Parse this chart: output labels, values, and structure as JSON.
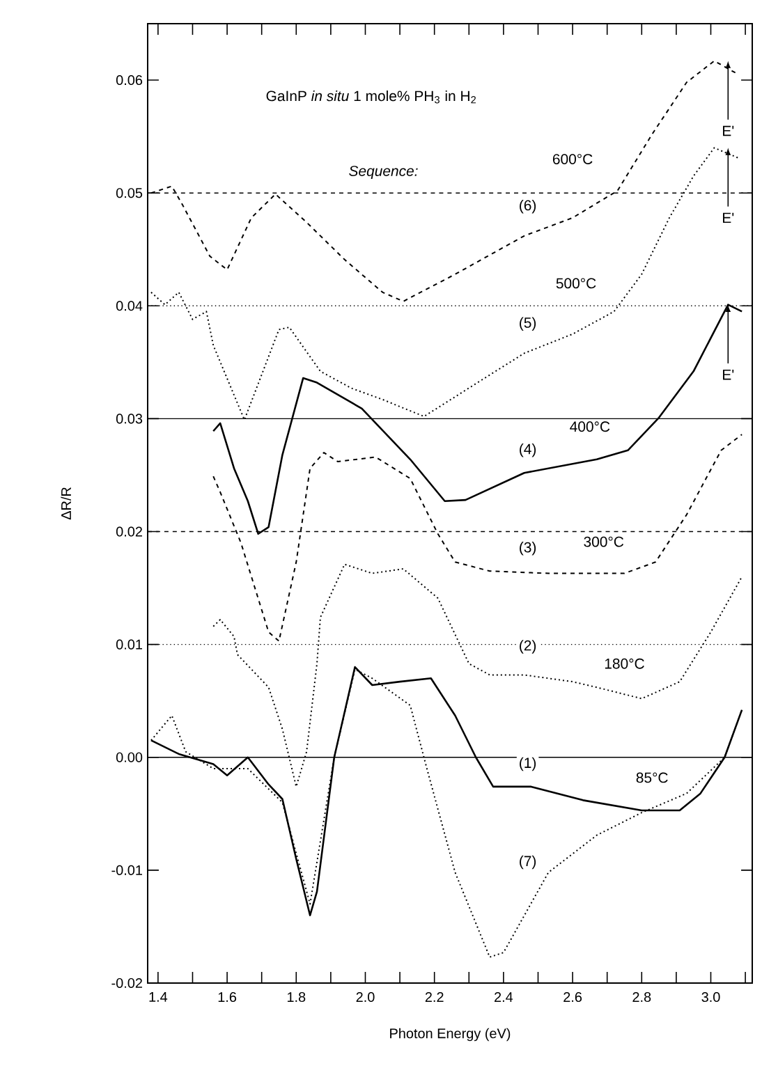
{
  "chart_data": {
    "type": "line",
    "title": "GaInP *in situ* 1 mole% PH$_{3}$ in H$_{2}$",
    "xlabel": "Photon Energy (eV)",
    "ylabel": "ΔR/R",
    "xlim": [
      1.37,
      3.12
    ],
    "ylim": [
      -0.02,
      0.065
    ],
    "xticks": [
      1.4,
      {
        "value": 1.5,
        "label": null
      },
      1.6,
      {
        "value": 1.7,
        "label": null
      },
      1.8,
      {
        "value": 1.9,
        "label": null
      },
      {
        "value": 2,
        "label": "2.0"
      },
      {
        "value": 2.1,
        "label": null
      },
      2.2,
      {
        "value": 2.3,
        "label": null
      },
      2.4,
      {
        "value": 2.5,
        "label": null
      },
      2.6,
      {
        "value": 2.7,
        "label": null
      },
      2.8,
      {
        "value": 2.9,
        "label": null
      },
      {
        "value": 3,
        "label": "3.0"
      },
      {
        "value": 3.1,
        "label": null
      }
    ],
    "yticks": [
      {
        "value": -0.02,
        "label": "-0.02"
      },
      {
        "value": -0.01,
        "label": "-0.01"
      },
      {
        "value": 0,
        "label": "0.00"
      },
      {
        "value": 0.01,
        "label": "0.01"
      },
      {
        "value": 0.02,
        "label": "0.02"
      },
      {
        "value": 0.03,
        "label": "0.03"
      },
      {
        "value": 0.04,
        "label": "0.04"
      },
      {
        "value": 0.05,
        "label": "0.05"
      },
      {
        "value": 0.06,
        "label": "0.06"
      }
    ],
    "series": [
      {
        "color": "#000000",
        "line_style": "solid",
        "x": [
          1.38,
          1.46,
          1.56,
          1.6,
          1.66,
          1.72,
          1.76,
          1.8,
          1.84,
          1.86,
          1.91,
          1.97,
          2.02,
          2.1,
          2.19,
          2.26,
          2.32,
          2.37,
          2.48,
          2.63,
          2.8,
          2.91,
          2.97,
          3.04,
          3.09
        ],
        "values": [
          0.0015,
          0.0003,
          -0.0006,
          -0.0016,
          0.0,
          -0.0024,
          -0.0037,
          -0.009,
          -0.014,
          -0.0119,
          0.0,
          0.008,
          0.0064,
          0.0067,
          0.007,
          0.0037,
          0.0,
          -0.0026,
          -0.0026,
          -0.0038,
          -0.0047,
          -0.0047,
          -0.0032,
          0.0,
          0.0042
        ]
      },
      {
        "color": "#000000",
        "line_style": "dotted",
        "x": [
          1.56,
          1.58,
          1.62,
          1.63,
          1.72,
          1.76,
          1.8,
          1.83,
          1.86,
          1.87,
          1.94,
          2.02,
          2.11,
          2.21,
          2.3,
          2.36,
          2.46,
          2.6,
          2.67,
          2.8,
          2.91,
          3.0,
          3.09
        ],
        "values": [
          0.0116,
          0.0122,
          0.0107,
          0.0091,
          0.0062,
          0.0025,
          -0.0026,
          0.0005,
          0.0083,
          0.0124,
          0.0171,
          0.0163,
          0.0167,
          0.0141,
          0.0083,
          0.0073,
          0.0073,
          0.0067,
          0.0062,
          0.0052,
          0.0067,
          0.0111,
          0.016
        ]
      },
      {
        "color": "#000000",
        "line_style": "dashed",
        "x": [
          1.56,
          1.58,
          1.64,
          1.72,
          1.75,
          1.8,
          1.84,
          1.88,
          1.92,
          2.03,
          2.13,
          2.21,
          2.26,
          2.36,
          2.53,
          2.75,
          2.84,
          2.93,
          3.03,
          3.09
        ],
        "values": [
          0.0249,
          0.0235,
          0.019,
          0.0111,
          0.0103,
          0.0173,
          0.0256,
          0.027,
          0.0262,
          0.0266,
          0.0247,
          0.0198,
          0.0173,
          0.0165,
          0.0163,
          0.0163,
          0.0173,
          0.0215,
          0.0272,
          0.0286
        ]
      },
      {
        "color": "#000000",
        "line_style": "solid",
        "x": [
          1.56,
          1.58,
          1.62,
          1.66,
          1.69,
          1.72,
          1.76,
          1.82,
          1.86,
          1.99,
          2.13,
          2.23,
          2.29,
          2.46,
          2.67,
          2.76,
          2.85,
          2.95,
          3.05,
          3.09
        ],
        "values": [
          0.0289,
          0.0296,
          0.0256,
          0.0227,
          0.0198,
          0.0204,
          0.0268,
          0.0336,
          0.0332,
          0.0309,
          0.0264,
          0.0227,
          0.0228,
          0.0252,
          0.0264,
          0.0272,
          0.0301,
          0.0342,
          0.0401,
          0.0395
        ]
      },
      {
        "color": "#000000",
        "line_style": "dotted",
        "x": [
          1.38,
          1.42,
          1.46,
          1.5,
          1.54,
          1.56,
          1.65,
          1.75,
          1.78,
          1.87,
          1.96,
          2.05,
          2.17,
          2.33,
          2.46,
          2.6,
          2.72,
          2.8,
          2.88,
          2.95,
          3.01,
          3.08
        ],
        "values": [
          0.0412,
          0.0401,
          0.0412,
          0.0388,
          0.0395,
          0.0365,
          0.0299,
          0.0379,
          0.0381,
          0.0342,
          0.0327,
          0.0317,
          0.0302,
          0.0333,
          0.0358,
          0.0375,
          0.0395,
          0.0428,
          0.0478,
          0.0515,
          0.054,
          0.0531
        ]
      },
      {
        "color": "#000000",
        "line_style": "dashed",
        "x": [
          1.38,
          1.44,
          1.47,
          1.55,
          1.6,
          1.67,
          1.74,
          1.83,
          1.94,
          2.05,
          2.11,
          2.26,
          2.46,
          2.6,
          2.73,
          2.83,
          2.93,
          3.01,
          3.08
        ],
        "values": [
          0.05,
          0.0506,
          0.049,
          0.0444,
          0.0432,
          0.0478,
          0.0499,
          0.0474,
          0.0441,
          0.0412,
          0.0404,
          0.0428,
          0.0462,
          0.0478,
          0.0502,
          0.0552,
          0.0598,
          0.0617,
          0.0605
        ]
      },
      {
        "color": "#000000",
        "line_style": "dotted",
        "x": [
          1.38,
          1.44,
          1.48,
          1.56,
          1.66,
          1.76,
          1.84,
          1.91,
          1.97,
          2.02,
          2.13,
          2.18,
          2.26,
          2.36,
          2.4,
          2.53,
          2.67,
          2.8,
          2.93,
          3.04,
          3.09
        ],
        "values": [
          0.0015,
          0.0037,
          0.0005,
          -0.001,
          -0.001,
          -0.004,
          -0.013,
          0.0,
          0.0078,
          0.007,
          0.0046,
          -0.0012,
          -0.0102,
          -0.0177,
          -0.0173,
          -0.0102,
          -0.0069,
          -0.0049,
          -0.0032,
          0.0,
          0.0042
        ]
      }
    ],
    "ref_lines": [
      {
        "axis": "y",
        "value": 0,
        "color": "#000000",
        "line_style": "solid"
      },
      {
        "axis": "y",
        "value": 0.01,
        "color": "#000000",
        "line_style": "dotted"
      },
      {
        "axis": "y",
        "value": 0.02,
        "color": "#000000",
        "line_style": "dashed"
      },
      {
        "axis": "y",
        "value": 0.03,
        "color": "#000000",
        "line_style": "solid"
      },
      {
        "axis": "y",
        "value": 0.04,
        "color": "#000000",
        "line_style": "dotted"
      },
      {
        "axis": "y",
        "value": 0.05,
        "color": "#000000",
        "line_style": "dashed"
      }
    ],
    "annotations": [
      "Sequence:",
      {
        "text": "(1)",
        "x": 2.47,
        "y": -0.0006
      },
      {
        "text": "85°C",
        "x": 2.83,
        "y": -0.0018
      },
      {
        "text": "(7)",
        "x": 2.47,
        "y": -0.0093
      },
      {
        "text": "(2)",
        "x": 2.47,
        "y": 0.0098
      },
      {
        "text": "180°C",
        "x": 2.75,
        "y": 0.0083
      },
      {
        "text": "(3)",
        "x": 2.47,
        "y": 0.0185
      },
      {
        "text": "300°C",
        "x": 2.69,
        "y": 0.0191
      },
      {
        "text": "(4)",
        "x": 2.47,
        "y": 0.0272
      },
      {
        "text": "400°C",
        "x": 2.65,
        "y": 0.0293
      },
      {
        "text": "(5)",
        "x": 2.47,
        "y": 0.0384
      },
      {
        "text": "500°C",
        "x": 2.61,
        "y": 0.042
      },
      {
        "text": "(6)",
        "x": 2.47,
        "y": 0.0488
      },
      {
        "text": "600°C",
        "x": 2.6,
        "y": 0.053
      },
      {
        "text": "E'",
        "x": 3.05,
        "y": 0.0617
      },
      {
        "text": "E'",
        "x": 3.05,
        "y": 0.054
      },
      {
        "text": "E'",
        "x": 3.05,
        "y": 0.0401
      }
    ]
  }
}
